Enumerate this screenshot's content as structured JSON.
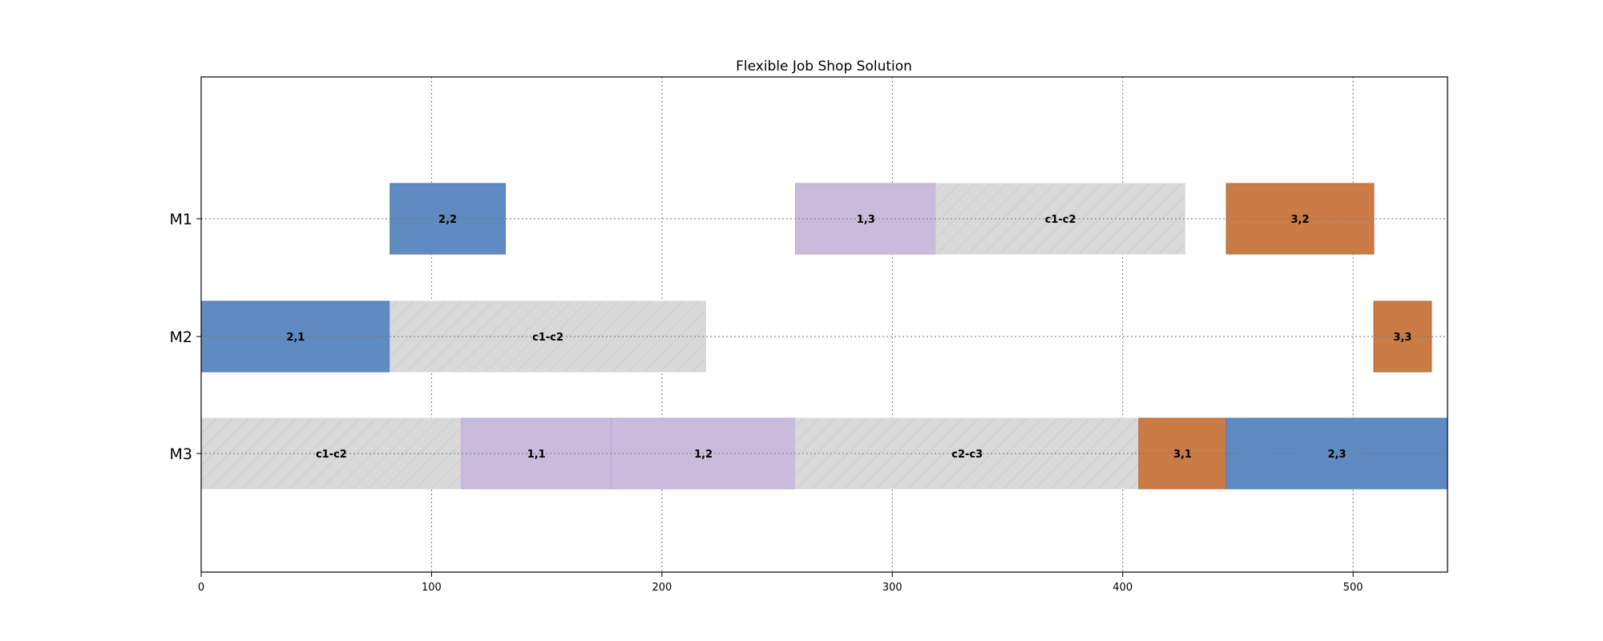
{
  "chart_data": {
    "type": "gantt",
    "title": "Flexible Job Shop Solution",
    "xlim": [
      0,
      541
    ],
    "x_ticks": [
      0,
      100,
      200,
      300,
      400,
      500
    ],
    "machines": [
      "M1",
      "M2",
      "M3"
    ],
    "grid": true,
    "colors": {
      "job1": "#c9bbdc",
      "job2": "#5f8ac2",
      "job3": "#cb7b45",
      "changeover": "#d9d9d9"
    },
    "tasks": [
      {
        "machine": "M1",
        "label": "2,2",
        "start": 82,
        "end": 132,
        "kind": "job2"
      },
      {
        "machine": "M1",
        "label": "1,3",
        "start": 258,
        "end": 319,
        "kind": "job1"
      },
      {
        "machine": "M1",
        "label": "c1-c2",
        "start": 319,
        "end": 427,
        "kind": "changeover"
      },
      {
        "machine": "M1",
        "label": "3,2",
        "start": 445,
        "end": 509,
        "kind": "job3"
      },
      {
        "machine": "M2",
        "label": "2,1",
        "start": 0,
        "end": 82,
        "kind": "job2"
      },
      {
        "machine": "M2",
        "label": "c1-c2",
        "start": 82,
        "end": 219,
        "kind": "changeover"
      },
      {
        "machine": "M2",
        "label": "3,3",
        "start": 509,
        "end": 534,
        "kind": "job3"
      },
      {
        "machine": "M3",
        "label": "c1-c2",
        "start": 0,
        "end": 113,
        "kind": "changeover"
      },
      {
        "machine": "M3",
        "label": "1,1",
        "start": 113,
        "end": 178,
        "kind": "job1"
      },
      {
        "machine": "M3",
        "label": "1,2",
        "start": 178,
        "end": 258,
        "kind": "job1"
      },
      {
        "machine": "M3",
        "label": "c2-c3",
        "start": 258,
        "end": 407,
        "kind": "changeover"
      },
      {
        "machine": "M3",
        "label": "3,1",
        "start": 407,
        "end": 445,
        "kind": "job3"
      },
      {
        "machine": "M3",
        "label": "2,3",
        "start": 445,
        "end": 541,
        "kind": "job2"
      }
    ]
  }
}
